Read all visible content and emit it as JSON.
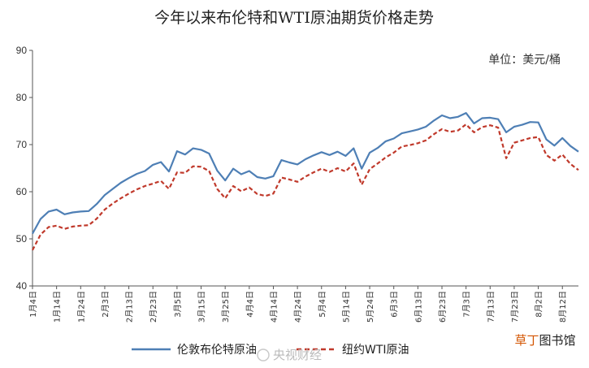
{
  "chart_data": {
    "type": "line",
    "title": "今年以来布伦特和WTI原油期货价格走势",
    "unit_label": "单位：美元/桶",
    "xlabel": "",
    "ylabel": "",
    "ylim": [
      40,
      90
    ],
    "yticks": [
      40,
      50,
      60,
      70,
      80,
      90
    ],
    "grid": false,
    "legend_position": "bottom",
    "x_tick_labels": [
      "1月4日",
      "1月14日",
      "1月24日",
      "2月3日",
      "2月13日",
      "2月23日",
      "3月5日",
      "3月15日",
      "3月25日",
      "4月4日",
      "4月14日",
      "4月24日",
      "5月4日",
      "5月14日",
      "5月24日",
      "6月3日",
      "6月13日",
      "6月23日",
      "7月3日",
      "7月13日",
      "7月23日",
      "8月2日",
      "8月12日"
    ],
    "x": [
      "1月4日",
      "1月7日",
      "1月10日",
      "1月14日",
      "1月18日",
      "1月21日",
      "1月24日",
      "1月28日",
      "1月31日",
      "2月3日",
      "2月7日",
      "2月10日",
      "2月13日",
      "2月17日",
      "2月20日",
      "2月23日",
      "2月27日",
      "3月2日",
      "3月5日",
      "3月9日",
      "3月12日",
      "3月15日",
      "3月19日",
      "3月22日",
      "3月25日",
      "3月29日",
      "4月1日",
      "4月4日",
      "4月8日",
      "4月11日",
      "4月14日",
      "4月18日",
      "4月21日",
      "4月24日",
      "4月28日",
      "5月1日",
      "5月4日",
      "5月8日",
      "5月11日",
      "5月14日",
      "5月18日",
      "5月21日",
      "5月24日",
      "5月28日",
      "5月31日",
      "6月3日",
      "6月7日",
      "6月10日",
      "6月13日",
      "6月17日",
      "6月20日",
      "6月23日",
      "6月27日",
      "6月30日",
      "7月3日",
      "7月7日",
      "7月10日",
      "7月13日",
      "7月17日",
      "7月20日",
      "7月23日",
      "7月27日",
      "7月30日",
      "8月2日",
      "8月6日",
      "8月9日",
      "8月12日",
      "8月16日",
      "8月19日"
    ],
    "series": [
      {
        "name": "伦敦布伦特原油",
        "color": "#4e7fb5",
        "dash": "solid",
        "values": [
          51.1,
          54.2,
          55.8,
          56.2,
          55.2,
          55.6,
          55.8,
          55.9,
          57.4,
          59.3,
          60.6,
          61.9,
          62.9,
          63.8,
          64.4,
          65.7,
          66.3,
          64.3,
          68.6,
          67.9,
          69.2,
          68.9,
          68.1,
          64.5,
          62.4,
          64.9,
          63.7,
          64.4,
          63.1,
          62.8,
          63.3,
          66.7,
          66.2,
          65.8,
          66.9,
          67.7,
          68.4,
          67.8,
          68.5,
          67.6,
          69.2,
          64.9,
          68.3,
          69.3,
          70.7,
          71.3,
          72.4,
          72.8,
          73.2,
          73.8,
          75.1,
          76.2,
          75.6,
          75.9,
          76.7,
          74.5,
          75.6,
          75.7,
          75.4,
          72.6,
          73.8,
          74.2,
          74.8,
          74.7,
          71.1,
          69.8,
          71.4,
          69.7,
          68.5
        ]
      },
      {
        "name": "纽约WTI原油",
        "color": "#c0392b",
        "dash": "dashed",
        "values": [
          47.6,
          50.9,
          52.5,
          52.8,
          52.1,
          52.6,
          52.8,
          52.9,
          54.3,
          56.2,
          57.5,
          58.6,
          59.6,
          60.5,
          61.2,
          61.7,
          62.3,
          60.6,
          64.1,
          64.0,
          65.4,
          65.3,
          64.4,
          60.6,
          58.6,
          61.2,
          60.1,
          60.9,
          59.5,
          59.1,
          59.6,
          63.0,
          62.6,
          62.1,
          63.2,
          64.1,
          64.9,
          64.2,
          65.0,
          64.3,
          66.0,
          61.5,
          64.8,
          66.0,
          67.3,
          68.3,
          69.6,
          69.9,
          70.3,
          70.9,
          72.2,
          73.3,
          72.7,
          73.0,
          74.3,
          72.6,
          73.7,
          74.1,
          73.6,
          67.1,
          70.4,
          70.9,
          71.4,
          71.6,
          67.8,
          66.6,
          67.9,
          65.9,
          64.6
        ]
      }
    ]
  },
  "watermark": {
    "source_text": "央视财经",
    "logo_text": "草丁图书馆"
  }
}
